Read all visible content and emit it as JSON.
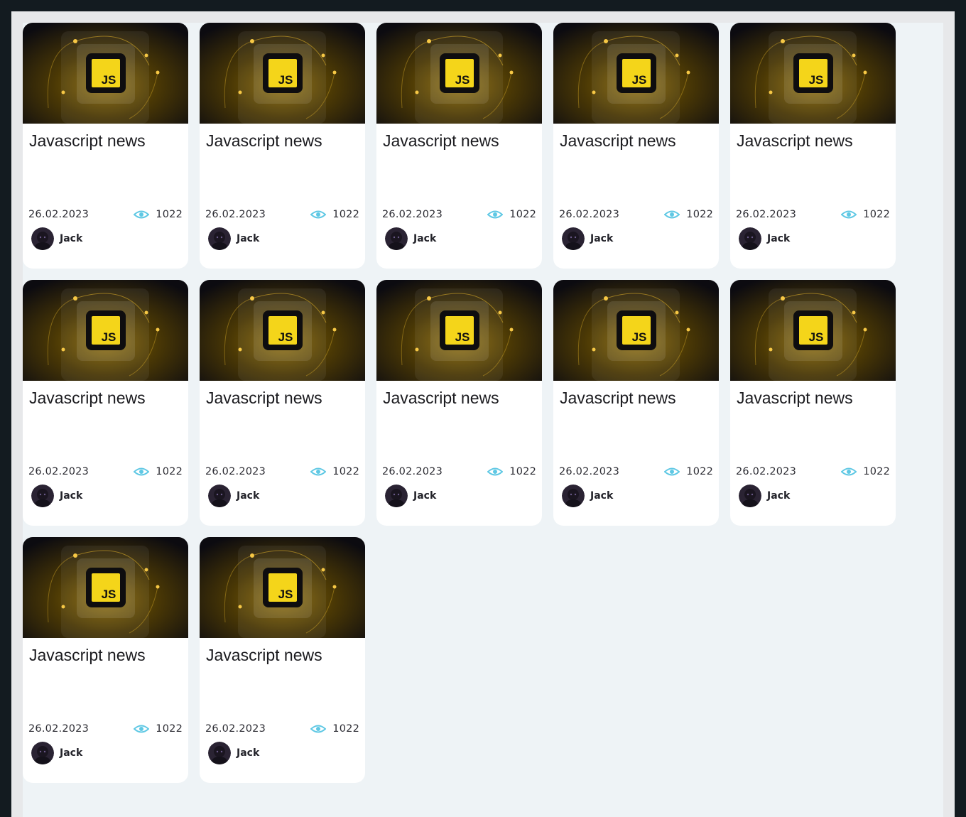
{
  "colors": {
    "outer_background": "#131b20",
    "frame": "#e7e8ea",
    "page_background": "#eef3f6",
    "card_background": "#ffffff",
    "eye_icon": "#5fc8e4",
    "js_badge": "#f4d51a"
  },
  "cards": [
    {
      "image_label": "JS",
      "title": "Javascript news",
      "date": "26.02.2023",
      "views": "1022",
      "author": "Jack",
      "icon": "eye-icon"
    },
    {
      "image_label": "JS",
      "title": "Javascript news",
      "date": "26.02.2023",
      "views": "1022",
      "author": "Jack",
      "icon": "eye-icon"
    },
    {
      "image_label": "JS",
      "title": "Javascript news",
      "date": "26.02.2023",
      "views": "1022",
      "author": "Jack",
      "icon": "eye-icon"
    },
    {
      "image_label": "JS",
      "title": "Javascript news",
      "date": "26.02.2023",
      "views": "1022",
      "author": "Jack",
      "icon": "eye-icon"
    },
    {
      "image_label": "JS",
      "title": "Javascript news",
      "date": "26.02.2023",
      "views": "1022",
      "author": "Jack",
      "icon": "eye-icon"
    },
    {
      "image_label": "JS",
      "title": "Javascript news",
      "date": "26.02.2023",
      "views": "1022",
      "author": "Jack",
      "icon": "eye-icon"
    },
    {
      "image_label": "JS",
      "title": "Javascript news",
      "date": "26.02.2023",
      "views": "1022",
      "author": "Jack",
      "icon": "eye-icon"
    },
    {
      "image_label": "JS",
      "title": "Javascript news",
      "date": "26.02.2023",
      "views": "1022",
      "author": "Jack",
      "icon": "eye-icon"
    },
    {
      "image_label": "JS",
      "title": "Javascript news",
      "date": "26.02.2023",
      "views": "1022",
      "author": "Jack",
      "icon": "eye-icon"
    },
    {
      "image_label": "JS",
      "title": "Javascript news",
      "date": "26.02.2023",
      "views": "1022",
      "author": "Jack",
      "icon": "eye-icon"
    },
    {
      "image_label": "JS",
      "title": "Javascript news",
      "date": "26.02.2023",
      "views": "1022",
      "author": "Jack",
      "icon": "eye-icon"
    },
    {
      "image_label": "JS",
      "title": "Javascript news",
      "date": "26.02.2023",
      "views": "1022",
      "author": "Jack",
      "icon": "eye-icon"
    }
  ]
}
